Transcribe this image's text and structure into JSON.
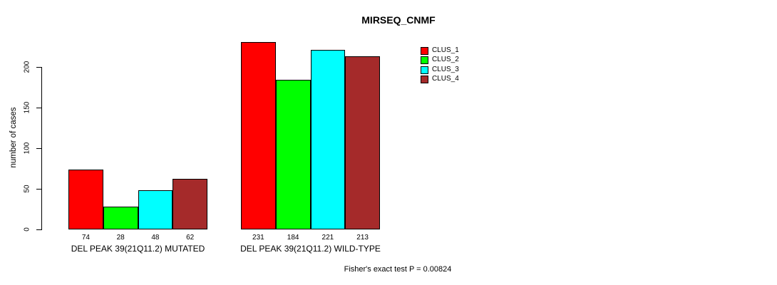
{
  "chart_data": {
    "type": "bar",
    "title": "MIRSEQ_CNMF",
    "ylabel": "number of cases",
    "ylim": [
      0,
      231
    ],
    "yticks": [
      0,
      50,
      100,
      150,
      200
    ],
    "grid": false,
    "legend_position": "right",
    "bar_value_labels": true,
    "series": [
      {
        "name": "CLUS_1",
        "color": "#FF0000"
      },
      {
        "name": "CLUS_2",
        "color": "#00FF00"
      },
      {
        "name": "CLUS_3",
        "color": "#00FFFF"
      },
      {
        "name": "CLUS_4",
        "color": "#A52A2A"
      }
    ],
    "categories": [
      "DEL PEAK 39(21Q11.2) MUTATED",
      "DEL PEAK 39(21Q11.2) WILD-TYPE"
    ],
    "groups": [
      {
        "label": "DEL PEAK 39(21Q11.2) MUTATED",
        "values": [
          74,
          28,
          48,
          62
        ]
      },
      {
        "label": "DEL PEAK 39(21Q11.2) WILD-TYPE",
        "values": [
          231,
          184,
          221,
          213
        ]
      }
    ],
    "footnote": "Fisher's exact test P = 0.00824"
  }
}
